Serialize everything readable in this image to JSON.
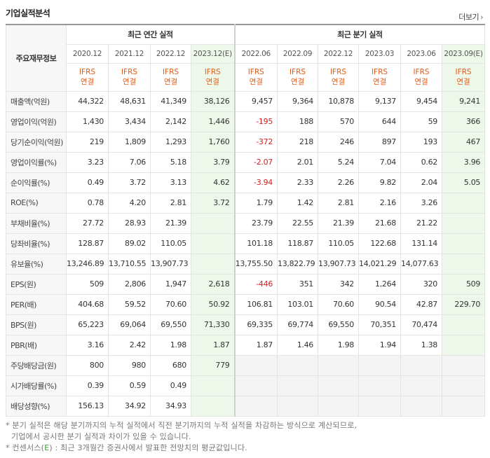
{
  "header": {
    "title": "기업실적분석",
    "more_label": "더보기"
  },
  "table": {
    "corner_label": "주요재무정보",
    "annual_group": "최근 연간 실적",
    "quarter_group": "최근 분기 실적",
    "periods": [
      {
        "date": "2020.12",
        "basis1": "IFRS",
        "basis2": "연결",
        "estimate": false
      },
      {
        "date": "2021.12",
        "basis1": "IFRS",
        "basis2": "연결",
        "estimate": false
      },
      {
        "date": "2022.12",
        "basis1": "IFRS",
        "basis2": "연결",
        "estimate": false
      },
      {
        "date": "2023.12(E)",
        "basis1": "IFRS",
        "basis2": "연결",
        "estimate": true
      },
      {
        "date": "2022.06",
        "basis1": "IFRS",
        "basis2": "연결",
        "estimate": false
      },
      {
        "date": "2022.09",
        "basis1": "IFRS",
        "basis2": "연결",
        "estimate": false
      },
      {
        "date": "2022.12",
        "basis1": "IFRS",
        "basis2": "연결",
        "estimate": false
      },
      {
        "date": "2023.03",
        "basis1": "IFRS",
        "basis2": "연결",
        "estimate": false
      },
      {
        "date": "2023.06",
        "basis1": "IFRS",
        "basis2": "연결",
        "estimate": false
      },
      {
        "date": "2023.09(E)",
        "basis1": "IFRS",
        "basis2": "연결",
        "estimate": true
      }
    ],
    "rows": [
      {
        "label": "매출액(억원)",
        "values": [
          "44,322",
          "48,631",
          "41,349",
          "38,126",
          "9,457",
          "9,364",
          "10,878",
          "9,137",
          "9,454",
          "9,241"
        ]
      },
      {
        "label": "영업이익(억원)",
        "values": [
          "1,430",
          "3,434",
          "2,142",
          "1,446",
          "-195",
          "188",
          "570",
          "644",
          "59",
          "366"
        ]
      },
      {
        "label": "당기순이익(억원)",
        "values": [
          "219",
          "1,809",
          "1,293",
          "1,760",
          "-372",
          "218",
          "246",
          "897",
          "193",
          "467"
        ]
      },
      {
        "label": "영업이익률(%)",
        "values": [
          "3.23",
          "7.06",
          "5.18",
          "3.79",
          "-2.07",
          "2.01",
          "5.24",
          "7.04",
          "0.62",
          "3.96"
        ]
      },
      {
        "label": "순이익률(%)",
        "values": [
          "0.49",
          "3.72",
          "3.13",
          "4.62",
          "-3.94",
          "2.33",
          "2.26",
          "9.82",
          "2.04",
          "5.05"
        ]
      },
      {
        "label": "ROE(%)",
        "values": [
          "0.78",
          "4.20",
          "2.81",
          "3.72",
          "1.79",
          "1.42",
          "2.81",
          "2.16",
          "3.26",
          ""
        ]
      },
      {
        "label": "부채비율(%)",
        "values": [
          "27.72",
          "28.93",
          "21.39",
          "",
          "23.79",
          "22.55",
          "21.39",
          "21.68",
          "21.22",
          ""
        ]
      },
      {
        "label": "당좌비율(%)",
        "values": [
          "128.87",
          "89.02",
          "110.05",
          "",
          "101.18",
          "118.87",
          "110.05",
          "122.68",
          "131.14",
          ""
        ]
      },
      {
        "label": "유보율(%)",
        "values": [
          "13,246.89",
          "13,710.55",
          "13,907.73",
          "",
          "13,755.50",
          "13,822.79",
          "13,907.73",
          "14,021.29",
          "14,077.63",
          ""
        ]
      },
      {
        "label": "EPS(원)",
        "values": [
          "509",
          "2,806",
          "1,947",
          "2,618",
          "-446",
          "351",
          "342",
          "1,264",
          "320",
          "509"
        ]
      },
      {
        "label": "PER(배)",
        "values": [
          "404.68",
          "59.52",
          "70.60",
          "50.92",
          "106.81",
          "103.01",
          "70.60",
          "90.54",
          "42.87",
          "229.70"
        ]
      },
      {
        "label": "BPS(원)",
        "values": [
          "65,223",
          "69,064",
          "69,550",
          "71,330",
          "69,335",
          "69,774",
          "69,550",
          "70,351",
          "70,474",
          ""
        ]
      },
      {
        "label": "PBR(배)",
        "values": [
          "3.16",
          "2.42",
          "1.98",
          "1.87",
          "1.87",
          "1.46",
          "1.98",
          "1.94",
          "1.38",
          ""
        ]
      },
      {
        "label": "주당배당금(원)",
        "values": [
          "800",
          "980",
          "680",
          "779",
          "",
          "",
          "",
          "",
          "",
          ""
        ]
      },
      {
        "label": "시가배당률(%)",
        "values": [
          "0.39",
          "0.59",
          "0.49",
          "",
          "",
          "",
          "",
          "",
          "",
          ""
        ]
      },
      {
        "label": "배당성향(%)",
        "values": [
          "156.13",
          "34.92",
          "34.93",
          "",
          "",
          "",
          "",
          "",
          "",
          ""
        ]
      }
    ]
  },
  "notes": {
    "line1": "분기 실적은 해당 분기까지의 누적 실적에서 직전 분기까지의 누적 실적을 차감하는 방식으로 계산되므로,",
    "line2": "기업에서 공시한 분기 실적과 차이가 있을 수 있습니다.",
    "line3_prefix": "컨센서스(",
    "line3_mark": "E",
    "line3_suffix": ") : 최근 3개월간 증권사에서 발표한 전망치의 평균값입니다.",
    "bullet": "*"
  },
  "colors": {
    "ifrs": "#e25b17",
    "negative": "#d42020",
    "estimate_bg": "#eef8ea",
    "estimate_mark": "#3a9a3a"
  }
}
